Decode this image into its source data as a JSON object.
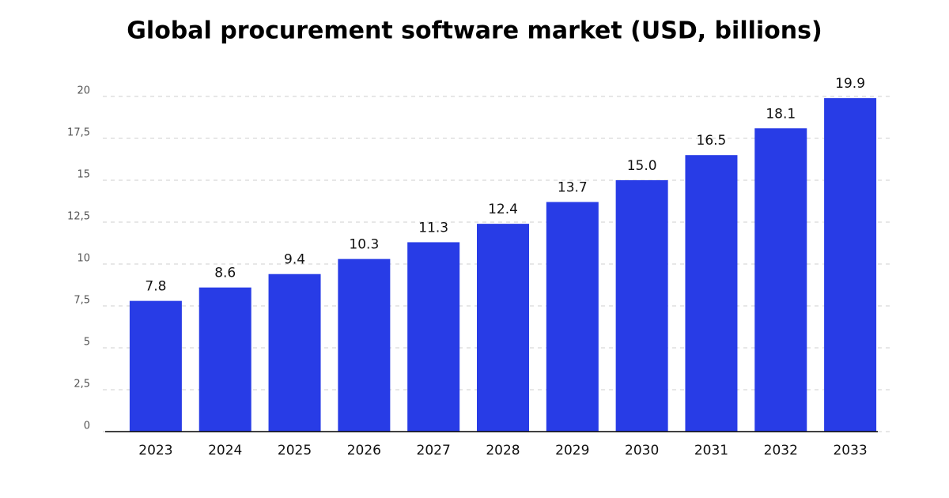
{
  "chart_data": {
    "type": "bar",
    "title": "Global procurement software market (USD, billions)",
    "categories": [
      "2023",
      "2024",
      "2025",
      "2026",
      "2027",
      "2028",
      "2029",
      "2030",
      "2031",
      "2032",
      "2033"
    ],
    "values": [
      7.8,
      8.6,
      9.4,
      10.3,
      11.3,
      12.4,
      13.7,
      15.0,
      16.5,
      18.1,
      19.9
    ],
    "value_labels": [
      "7.8",
      "8.6",
      "9.4",
      "10.3",
      "11.3",
      "12.4",
      "13.7",
      "15.0",
      "16.5",
      "18.1",
      "19.9"
    ],
    "color": "#283ce6",
    "ylim": [
      0,
      20
    ],
    "yticks": [
      0,
      {
        "value": 2.5,
        "label": "2,5"
      },
      5,
      {
        "value": 7.5,
        "label": "7,5"
      },
      10,
      {
        "value": 12.5,
        "label": "12,5"
      },
      15,
      {
        "value": 17.5,
        "label": "17,5"
      },
      20
    ],
    "grid": true
  }
}
